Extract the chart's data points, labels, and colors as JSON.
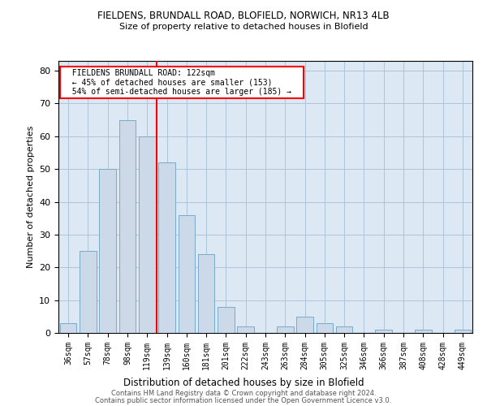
{
  "title1": "FIELDENS, BRUNDALL ROAD, BLOFIELD, NORWICH, NR13 4LB",
  "title2": "Size of property relative to detached houses in Blofield",
  "xlabel": "Distribution of detached houses by size in Blofield",
  "ylabel": "Number of detached properties",
  "categories": [
    "36sqm",
    "57sqm",
    "78sqm",
    "98sqm",
    "119sqm",
    "139sqm",
    "160sqm",
    "181sqm",
    "201sqm",
    "222sqm",
    "243sqm",
    "263sqm",
    "284sqm",
    "305sqm",
    "325sqm",
    "346sqm",
    "366sqm",
    "387sqm",
    "408sqm",
    "428sqm",
    "449sqm"
  ],
  "values": [
    3,
    25,
    50,
    65,
    60,
    52,
    36,
    24,
    8,
    2,
    0,
    2,
    5,
    3,
    2,
    0,
    1,
    0,
    1,
    0,
    1
  ],
  "bar_color": "#ccd9e8",
  "bar_edge_color": "#7aaac8",
  "annotation_text": "  FIELDENS BRUNDALL ROAD: 122sqm  \n  ← 45% of detached houses are smaller (153)  \n  54% of semi-detached houses are larger (185) →  ",
  "ylim": [
    0,
    83
  ],
  "yticks": [
    0,
    10,
    20,
    30,
    40,
    50,
    60,
    70,
    80
  ],
  "footer1": "Contains HM Land Registry data © Crown copyright and database right 2024.",
  "footer2": "Contains public sector information licensed under the Open Government Licence v3.0.",
  "grid_color": "#aec4d8",
  "background_color": "#dce8f4"
}
